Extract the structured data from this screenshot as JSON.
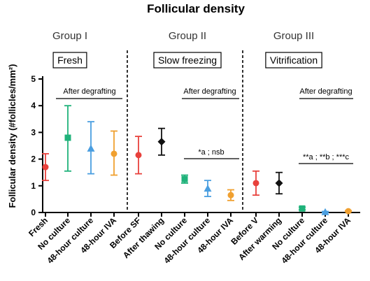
{
  "chart_data": {
    "type": "scatter",
    "title": "Follicular density",
    "ylabel": "Follicular density (#follicles/mm²)",
    "ylim": [
      0,
      5
    ],
    "yticks": [
      0,
      1,
      2,
      3,
      4,
      5
    ],
    "groups": [
      {
        "name": "Group I",
        "box_label": "Fresh",
        "annotation": "After degrafting",
        "significance": ""
      },
      {
        "name": "Group II",
        "box_label": "Slow freezing",
        "annotation": "After degrafting",
        "significance": "*a ; nsb"
      },
      {
        "name": "Group III",
        "box_label": "Vitrification",
        "annotation": "After degrafting",
        "significance": "**a ; **b ; ***c"
      }
    ],
    "categories": [
      "Fresh",
      "No culture",
      "48-hour culture",
      "48-hour IVA",
      "Before SF",
      "After thawing",
      "No culture",
      "48-hour culture",
      "48-hour IVA",
      "Before V",
      "After warming",
      "No culture",
      "48-hour culture",
      "48-hour IVA"
    ],
    "points": [
      {
        "category": "Fresh",
        "group": 0,
        "mean": 1.7,
        "low": 1.2,
        "high": 2.2,
        "color": "#e8413c",
        "marker": "circle"
      },
      {
        "category": "No culture",
        "group": 0,
        "mean": 2.8,
        "low": 1.55,
        "high": 4.0,
        "color": "#1fb27a",
        "marker": "square"
      },
      {
        "category": "48-hour culture",
        "group": 0,
        "mean": 2.4,
        "low": 1.45,
        "high": 3.4,
        "color": "#4a9ee0",
        "marker": "triangle"
      },
      {
        "category": "48-hour IVA",
        "group": 0,
        "mean": 2.2,
        "low": 1.4,
        "high": 3.05,
        "color": "#f0a030",
        "marker": "circle"
      },
      {
        "category": "Before SF",
        "group": 1,
        "mean": 2.15,
        "low": 1.45,
        "high": 2.85,
        "color": "#e8413c",
        "marker": "circle"
      },
      {
        "category": "After thawing",
        "group": 1,
        "mean": 2.65,
        "low": 2.15,
        "high": 3.15,
        "color": "#111111",
        "marker": "diamond"
      },
      {
        "category": "No culture",
        "group": 1,
        "mean": 1.25,
        "low": 1.1,
        "high": 1.4,
        "color": "#1fb27a",
        "marker": "square"
      },
      {
        "category": "48-hour culture",
        "group": 1,
        "mean": 0.9,
        "low": 0.6,
        "high": 1.2,
        "color": "#4a9ee0",
        "marker": "triangle"
      },
      {
        "category": "48-hour IVA",
        "group": 1,
        "mean": 0.65,
        "low": 0.45,
        "high": 0.85,
        "color": "#f0a030",
        "marker": "circle"
      },
      {
        "category": "Before V",
        "group": 2,
        "mean": 1.1,
        "low": 0.65,
        "high": 1.55,
        "color": "#e8413c",
        "marker": "circle"
      },
      {
        "category": "After warming",
        "group": 2,
        "mean": 1.1,
        "low": 0.7,
        "high": 1.5,
        "color": "#111111",
        "marker": "diamond"
      },
      {
        "category": "No culture",
        "group": 2,
        "mean": 0.15,
        "low": 0.1,
        "high": 0.2,
        "color": "#1fb27a",
        "marker": "square"
      },
      {
        "category": "48-hour culture",
        "group": 2,
        "mean": 0.02,
        "low": 0.0,
        "high": 0.04,
        "color": "#4a9ee0",
        "marker": "triangle"
      },
      {
        "category": "48-hour IVA",
        "group": 2,
        "mean": 0.05,
        "low": 0.03,
        "high": 0.07,
        "color": "#f0a030",
        "marker": "circle"
      }
    ]
  }
}
